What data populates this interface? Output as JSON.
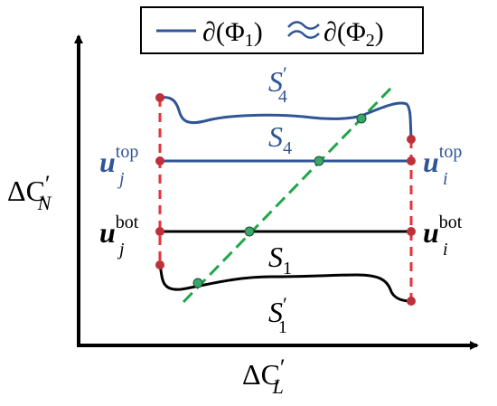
{
  "legend": {
    "expr_left": "∂(Φ",
    "sub_left": "1",
    "close_left": ")",
    "approx": "≈",
    "expr_right": "∂(Φ",
    "sub_right": "2",
    "close_right": ")"
  },
  "axes": {
    "y_label_main": "ΔC",
    "y_label_prime": "′",
    "y_label_sub": "N",
    "x_label_main": "ΔC",
    "x_label_prime": "′",
    "x_label_sub": "L"
  },
  "labels": {
    "s4_prime": {
      "main": "S",
      "prime": "′",
      "sub": "4"
    },
    "s4": {
      "main": "S",
      "sub": "4"
    },
    "s1": {
      "main": "S",
      "sub": "1"
    },
    "s1_prime": {
      "main": "S",
      "prime": "′",
      "sub": "1"
    },
    "u_j_top": {
      "main": "u",
      "sub": "j",
      "sup": "top"
    },
    "u_i_top": {
      "main": "u",
      "sub": "i",
      "sup": "top"
    },
    "u_j_bot": {
      "main": "u",
      "sub": "j",
      "sup": "bot"
    },
    "u_i_bot": {
      "main": "u",
      "sub": "i",
      "sup": "bot"
    }
  },
  "colors": {
    "blue": "#2f5597",
    "black": "#000000",
    "red_dash": "#e8333a",
    "green_dash": "#21a64a",
    "red_point": "#c0303a",
    "green_point": "#3aa66a"
  }
}
